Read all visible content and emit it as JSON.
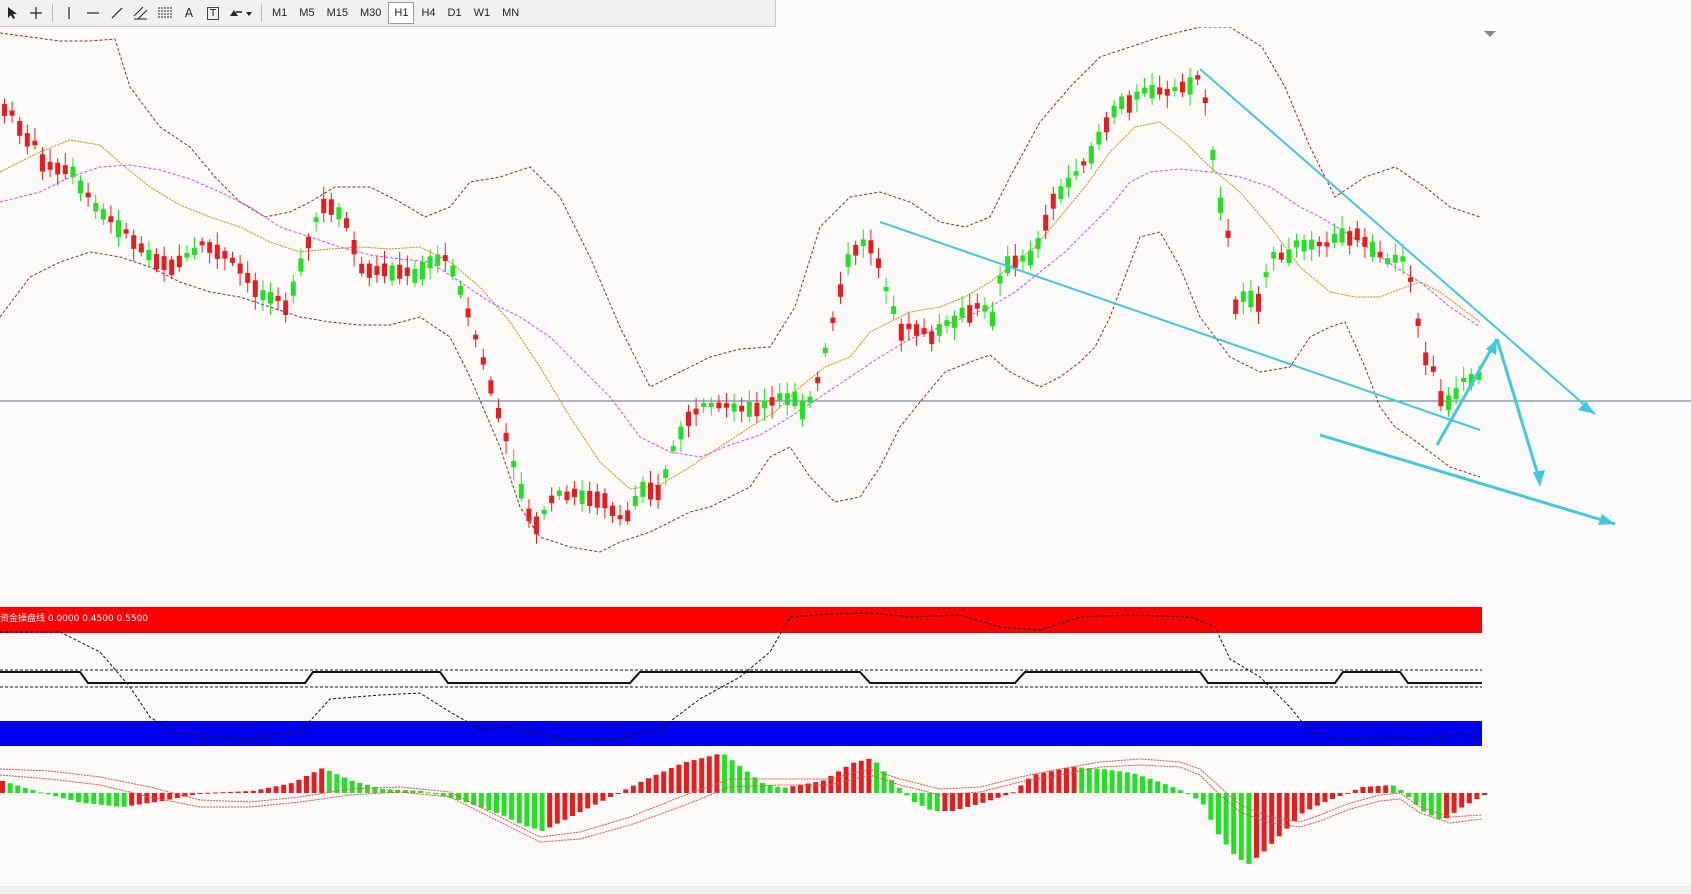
{
  "toolbar": {
    "tools": [
      {
        "name": "cursor-arrow-icon"
      },
      {
        "name": "crosshair-icon"
      },
      {
        "name": "vertical-line-icon"
      },
      {
        "name": "horizontal-line-icon"
      },
      {
        "name": "trend-line-icon"
      },
      {
        "name": "equidistant-channel-icon"
      },
      {
        "name": "fibonacci-retracement-icon"
      },
      {
        "name": "text-label",
        "glyph": "A"
      },
      {
        "name": "text-box-label",
        "glyph": "T"
      },
      {
        "name": "arrows-shapes-icon"
      }
    ],
    "timeframes": [
      "M1",
      "M5",
      "M15",
      "M30",
      "H1",
      "H4",
      "D1",
      "W1",
      "MN"
    ],
    "active_timeframe": "H1"
  },
  "indicator_label": "资金操盘线 0.0000 0.4500 0.5500",
  "colors": {
    "bull": "#22e022",
    "bear": "#e81c1c",
    "bollinger": "#8a2a2a",
    "ma_fast": "#d08a00",
    "ma_slow": "#e040e8",
    "trendline": "#40c8e0",
    "band_top": "#ff0000",
    "band_bottom": "#0000ee",
    "osc_line": "#111111"
  }
}
